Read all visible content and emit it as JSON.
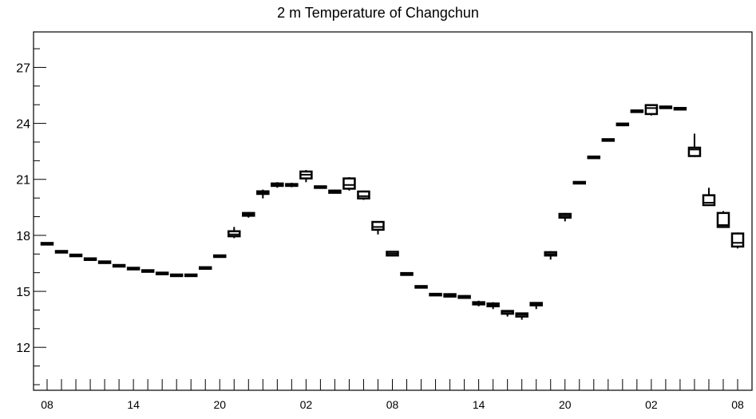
{
  "chart_data": {
    "type": "box",
    "title": "2 m Temperature of Changchun",
    "xlabel": "",
    "ylabel": "",
    "ylim": [
      9.7,
      28.9
    ],
    "yticks": [
      12,
      15,
      18,
      21,
      24,
      27
    ],
    "x_tick_labels": [
      {
        "index": 0,
        "label": "08"
      },
      {
        "index": 6,
        "label": "14"
      },
      {
        "index": 12,
        "label": "20"
      },
      {
        "index": 18,
        "label": "02"
      },
      {
        "index": 24,
        "label": "08"
      },
      {
        "index": 30,
        "label": "14"
      },
      {
        "index": 36,
        "label": "20"
      },
      {
        "index": 42,
        "label": "02"
      },
      {
        "index": 48,
        "label": "08"
      }
    ],
    "x_count": 49,
    "boxes": [
      {
        "i": 0,
        "min": 17.52,
        "q1": 17.53,
        "median": 17.55,
        "q3": 17.57,
        "max": 17.58
      },
      {
        "i": 1,
        "min": 17.08,
        "q1": 17.1,
        "median": 17.12,
        "q3": 17.14,
        "max": 17.15
      },
      {
        "i": 2,
        "min": 16.88,
        "q1": 16.9,
        "median": 16.92,
        "q3": 16.95,
        "max": 16.96
      },
      {
        "i": 3,
        "min": 16.68,
        "q1": 16.7,
        "median": 16.72,
        "q3": 16.75,
        "max": 16.76
      },
      {
        "i": 4,
        "min": 16.52,
        "q1": 16.54,
        "median": 16.56,
        "q3": 16.58,
        "max": 16.59
      },
      {
        "i": 5,
        "min": 16.33,
        "q1": 16.35,
        "median": 16.37,
        "q3": 16.39,
        "max": 16.4
      },
      {
        "i": 6,
        "min": 16.18,
        "q1": 16.2,
        "median": 16.22,
        "q3": 16.24,
        "max": 16.25
      },
      {
        "i": 7,
        "min": 16.05,
        "q1": 16.07,
        "median": 16.09,
        "q3": 16.11,
        "max": 16.12
      },
      {
        "i": 8,
        "min": 15.92,
        "q1": 15.94,
        "median": 15.96,
        "q3": 15.98,
        "max": 15.99
      },
      {
        "i": 9,
        "min": 15.82,
        "q1": 15.84,
        "median": 15.86,
        "q3": 15.88,
        "max": 15.89
      },
      {
        "i": 10,
        "min": 15.82,
        "q1": 15.84,
        "median": 15.86,
        "q3": 15.88,
        "max": 15.89
      },
      {
        "i": 11,
        "min": 16.18,
        "q1": 16.22,
        "median": 16.25,
        "q3": 16.28,
        "max": 16.32
      },
      {
        "i": 12,
        "min": 16.82,
        "q1": 16.85,
        "median": 16.88,
        "q3": 16.92,
        "max": 16.95
      },
      {
        "i": 13,
        "min": 17.85,
        "q1": 17.95,
        "median": 18.05,
        "q3": 18.22,
        "max": 18.45
      },
      {
        "i": 14,
        "min": 18.95,
        "q1": 19.05,
        "median": 19.12,
        "q3": 19.2,
        "max": 19.25
      },
      {
        "i": 15,
        "min": 19.98,
        "q1": 20.22,
        "median": 20.3,
        "q3": 20.36,
        "max": 20.45
      },
      {
        "i": 16,
        "min": 20.55,
        "q1": 20.65,
        "median": 20.72,
        "q3": 20.78,
        "max": 20.85
      },
      {
        "i": 17,
        "min": 20.58,
        "q1": 20.65,
        "median": 20.7,
        "q3": 20.75,
        "max": 20.82
      },
      {
        "i": 18,
        "min": 20.85,
        "q1": 21.05,
        "median": 21.25,
        "q3": 21.42,
        "max": 21.5
      },
      {
        "i": 19,
        "min": 20.5,
        "q1": 20.55,
        "median": 20.58,
        "q3": 20.62,
        "max": 20.65
      },
      {
        "i": 20,
        "min": 20.25,
        "q1": 20.28,
        "median": 20.34,
        "q3": 20.4,
        "max": 20.45
      },
      {
        "i": 21,
        "min": 20.4,
        "q1": 20.5,
        "median": 20.7,
        "q3": 21.05,
        "max": 21.12
      },
      {
        "i": 22,
        "min": 19.9,
        "q1": 19.98,
        "median": 20.1,
        "q3": 20.35,
        "max": 20.4
      },
      {
        "i": 23,
        "min": 18.05,
        "q1": 18.3,
        "median": 18.45,
        "q3": 18.72,
        "max": 18.75
      },
      {
        "i": 24,
        "min": 16.88,
        "q1": 16.92,
        "median": 17.02,
        "q3": 17.12,
        "max": 17.15
      },
      {
        "i": 25,
        "min": 15.85,
        "q1": 15.88,
        "median": 15.92,
        "q3": 15.98,
        "max": 16.02
      },
      {
        "i": 26,
        "min": 15.18,
        "q1": 15.2,
        "median": 15.24,
        "q3": 15.28,
        "max": 15.3
      },
      {
        "i": 27,
        "min": 14.78,
        "q1": 14.8,
        "median": 14.83,
        "q3": 14.85,
        "max": 14.87
      },
      {
        "i": 28,
        "min": 14.68,
        "q1": 14.72,
        "median": 14.8,
        "q3": 14.85,
        "max": 14.9
      },
      {
        "i": 29,
        "min": 14.6,
        "q1": 14.65,
        "median": 14.7,
        "q3": 14.75,
        "max": 14.8
      },
      {
        "i": 30,
        "min": 14.2,
        "q1": 14.3,
        "median": 14.38,
        "q3": 14.42,
        "max": 14.5
      },
      {
        "i": 31,
        "min": 14.05,
        "q1": 14.2,
        "median": 14.28,
        "q3": 14.35,
        "max": 14.42
      },
      {
        "i": 32,
        "min": 13.65,
        "q1": 13.8,
        "median": 13.9,
        "q3": 13.95,
        "max": 14.0
      },
      {
        "i": 33,
        "min": 13.48,
        "q1": 13.65,
        "median": 13.75,
        "q3": 13.82,
        "max": 13.85
      },
      {
        "i": 34,
        "min": 14.05,
        "q1": 14.25,
        "median": 14.32,
        "q3": 14.38,
        "max": 14.42
      },
      {
        "i": 35,
        "min": 16.7,
        "q1": 16.92,
        "median": 17.0,
        "q3": 17.1,
        "max": 17.15
      },
      {
        "i": 36,
        "min": 18.75,
        "q1": 18.95,
        "median": 19.05,
        "q3": 19.15,
        "max": 19.2
      },
      {
        "i": 37,
        "min": 20.75,
        "q1": 20.78,
        "median": 20.82,
        "q3": 20.86,
        "max": 20.88
      },
      {
        "i": 38,
        "min": 22.12,
        "q1": 22.15,
        "median": 22.18,
        "q3": 22.21,
        "max": 22.23
      },
      {
        "i": 39,
        "min": 23.05,
        "q1": 23.08,
        "median": 23.11,
        "q3": 23.14,
        "max": 23.16
      },
      {
        "i": 40,
        "min": 23.85,
        "q1": 23.9,
        "median": 23.95,
        "q3": 23.99,
        "max": 24.02
      },
      {
        "i": 41,
        "min": 24.6,
        "q1": 24.62,
        "median": 24.65,
        "q3": 24.68,
        "max": 24.7
      },
      {
        "i": 42,
        "min": 24.42,
        "q1": 24.5,
        "median": 24.82,
        "q3": 24.98,
        "max": 25.0
      },
      {
        "i": 43,
        "min": 24.78,
        "q1": 24.82,
        "median": 24.85,
        "q3": 24.9,
        "max": 24.95
      },
      {
        "i": 44,
        "min": 24.7,
        "q1": 24.75,
        "median": 24.78,
        "q3": 24.82,
        "max": 24.85
      },
      {
        "i": 45,
        "min": 22.2,
        "q1": 22.25,
        "median": 22.6,
        "q3": 22.7,
        "max": 23.45
      },
      {
        "i": 46,
        "min": 19.6,
        "q1": 19.62,
        "median": 19.75,
        "q3": 20.15,
        "max": 20.55
      },
      {
        "i": 47,
        "min": 18.4,
        "q1": 18.45,
        "median": 18.55,
        "q3": 19.2,
        "max": 19.3
      },
      {
        "i": 48,
        "min": 17.3,
        "q1": 17.4,
        "median": 17.6,
        "q3": 18.1,
        "max": 18.15
      }
    ]
  }
}
